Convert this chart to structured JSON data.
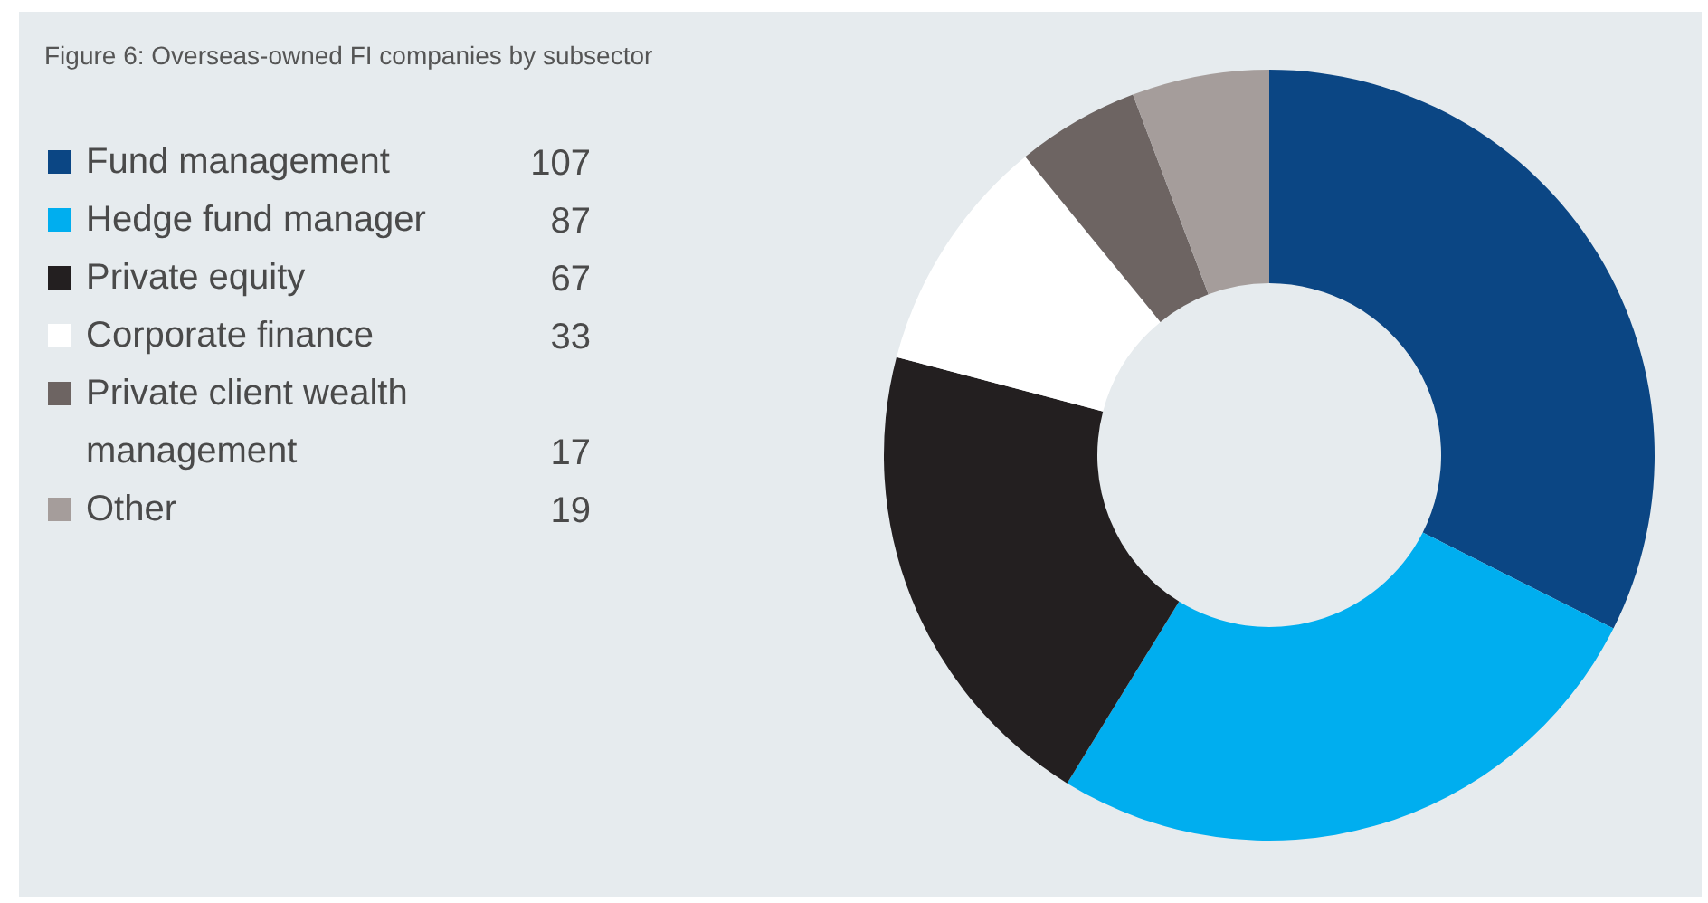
{
  "chart_data": {
    "type": "donut",
    "title": "Figure 6: Overseas-owned FI companies by subsector",
    "categories": [
      "Fund management",
      "Hedge fund manager",
      "Private equity",
      "Corporate finance",
      "Private client wealth management",
      "Other"
    ],
    "values": [
      107,
      87,
      67,
      33,
      17,
      19
    ],
    "colors": [
      "#0b4684",
      "#00aeef",
      "#231f20",
      "#ffffff",
      "#6d6462",
      "#a59d9b"
    ],
    "legend": "left",
    "data_labels": true
  }
}
